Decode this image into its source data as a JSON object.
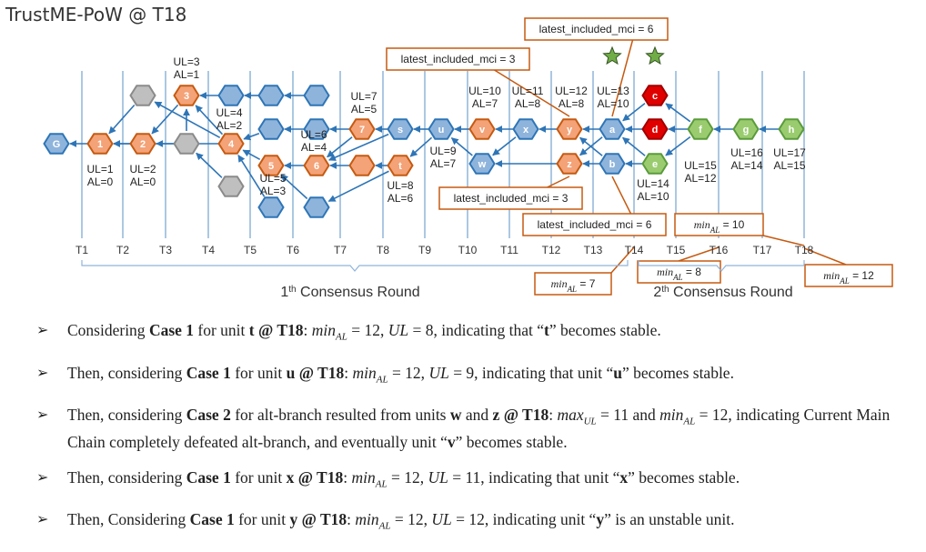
{
  "title": "TrustME-PoW @ T18",
  "colors": {
    "blue": "#8fb4dc",
    "orange": "#f4a277",
    "gray": "#bfbfbf",
    "red": "#e00000",
    "green": "#9acc6f",
    "stroke": "#2e75b6",
    "brown": "#c55a11"
  },
  "timeline": {
    "labels": [
      "T1",
      "T2",
      "T3",
      "T4",
      "T5",
      "T6",
      "T7",
      "T8",
      "T9",
      "T10",
      "T11",
      "T12",
      "T13",
      "T14",
      "T15",
      "T16",
      "T17",
      "T18"
    ]
  },
  "rounds": [
    {
      "label": "1th Consensus Round",
      "base": "1",
      "sup": "th",
      "rest": " Consensus Round"
    },
    {
      "label": "2th Consensus Round",
      "base": "2",
      "sup": "th",
      "rest": " Consensus Round"
    }
  ],
  "nodes": [
    {
      "id": "G",
      "label": "G",
      "color": "blue"
    },
    {
      "id": "1",
      "label": "1",
      "color": "orange"
    },
    {
      "id": "2",
      "label": "2",
      "color": "orange"
    },
    {
      "id": "g1",
      "label": "",
      "color": "gray"
    },
    {
      "id": "3",
      "label": "3",
      "color": "orange"
    },
    {
      "id": "g2",
      "label": "",
      "color": "gray"
    },
    {
      "id": "4",
      "label": "4",
      "color": "orange"
    },
    {
      "id": "b1",
      "label": "",
      "color": "blue"
    },
    {
      "id": "g3",
      "label": "",
      "color": "gray"
    },
    {
      "id": "b2",
      "label": "",
      "color": "blue"
    },
    {
      "id": "b3",
      "label": "",
      "color": "blue"
    },
    {
      "id": "b4",
      "label": "",
      "color": "blue"
    },
    {
      "id": "5",
      "label": "5",
      "color": "orange"
    },
    {
      "id": "b5",
      "label": "",
      "color": "blue"
    },
    {
      "id": "b6",
      "label": "",
      "color": "blue"
    },
    {
      "id": "6",
      "label": "6",
      "color": "orange"
    },
    {
      "id": "b7",
      "label": "",
      "color": "blue"
    },
    {
      "id": "7",
      "label": "7",
      "color": "orange"
    },
    {
      "id": "o1",
      "label": "",
      "color": "orange"
    },
    {
      "id": "s",
      "label": "s",
      "color": "blue"
    },
    {
      "id": "t",
      "label": "t",
      "color": "orange"
    },
    {
      "id": "u",
      "label": "u",
      "color": "blue"
    },
    {
      "id": "v",
      "label": "v",
      "color": "orange"
    },
    {
      "id": "w",
      "label": "w",
      "color": "blue"
    },
    {
      "id": "x",
      "label": "x",
      "color": "blue"
    },
    {
      "id": "y",
      "label": "y",
      "color": "orange"
    },
    {
      "id": "z",
      "label": "z",
      "color": "orange"
    },
    {
      "id": "a",
      "label": "a",
      "color": "blue"
    },
    {
      "id": "b",
      "label": "b",
      "color": "blue"
    },
    {
      "id": "c",
      "label": "c",
      "color": "red"
    },
    {
      "id": "d",
      "label": "d",
      "color": "red"
    },
    {
      "id": "e",
      "label": "e",
      "color": "green"
    },
    {
      "id": "f",
      "label": "f",
      "color": "green"
    },
    {
      "id": "gg",
      "label": "g",
      "color": "green"
    },
    {
      "id": "h",
      "label": "h",
      "color": "green"
    }
  ],
  "annotations": [
    {
      "id": "n3",
      "lines": [
        "UL=3",
        "AL=1"
      ]
    },
    {
      "id": "n4",
      "lines": [
        "UL=4",
        "AL=2"
      ]
    },
    {
      "id": "n1",
      "lines": [
        "UL=1",
        "AL=0"
      ]
    },
    {
      "id": "n2",
      "lines": [
        "UL=2",
        "AL=0"
      ]
    },
    {
      "id": "n5",
      "lines": [
        "UL=5",
        "AL=3"
      ]
    },
    {
      "id": "n6",
      "lines": [
        "UL=6",
        "AL=4"
      ]
    },
    {
      "id": "n7",
      "lines": [
        "UL=7",
        "AL=5"
      ]
    },
    {
      "id": "n8",
      "lines": [
        "UL=8",
        "AL=6"
      ]
    },
    {
      "id": "n9",
      "lines": [
        "UL=9",
        "AL=7"
      ]
    },
    {
      "id": "n10",
      "lines": [
        "UL=10",
        "AL=7"
      ]
    },
    {
      "id": "n11",
      "lines": [
        "UL=11",
        "AL=8"
      ]
    },
    {
      "id": "n12",
      "lines": [
        "UL=12",
        "AL=8"
      ]
    },
    {
      "id": "n13",
      "lines": [
        "UL=13",
        "AL=10"
      ]
    },
    {
      "id": "n14",
      "lines": [
        "UL=14",
        "AL=10"
      ]
    },
    {
      "id": "n15",
      "lines": [
        "UL=15",
        "AL=12"
      ]
    },
    {
      "id": "n16",
      "lines": [
        "UL=16",
        "AL=14"
      ]
    },
    {
      "id": "n17",
      "lines": [
        "UL=17",
        "AL=15"
      ]
    }
  ],
  "callouts": [
    {
      "id": "lim3_top",
      "text": "latest_included_mci = 3"
    },
    {
      "id": "lim6_top",
      "text": "latest_included_mci = 6"
    },
    {
      "id": "lim3_bot",
      "text": "latest_included_mci = 3"
    },
    {
      "id": "lim6_bot",
      "text": "latest_included_mci = 6"
    },
    {
      "id": "min10",
      "text": "min",
      "sub": "AL",
      "rest": " = 10"
    },
    {
      "id": "min8",
      "text": "min",
      "sub": "AL",
      "rest": " = 8"
    },
    {
      "id": "min7",
      "text": "min",
      "sub": "AL",
      "rest": " = 7"
    },
    {
      "id": "min12",
      "text": "min",
      "sub": "AL",
      "rest": " = 12"
    }
  ],
  "bullets": [
    [
      {
        "t": "Considering "
      },
      {
        "b": "Case 1"
      },
      {
        "t": " for unit "
      },
      {
        "b": "t @ T18"
      },
      {
        "t": ": "
      },
      {
        "i": "min"
      },
      {
        "s": "AL"
      },
      {
        "t": " = 12, "
      },
      {
        "i": "UL"
      },
      {
        "t": " = 8, indicating that “"
      },
      {
        "b": "t"
      },
      {
        "t": "” becomes stable."
      }
    ],
    [
      {
        "t": "Then, considering "
      },
      {
        "b": "Case 1"
      },
      {
        "t": " for unit "
      },
      {
        "b": "u @ T18"
      },
      {
        "t": ": "
      },
      {
        "i": "min"
      },
      {
        "s": "AL"
      },
      {
        "t": " = 12, "
      },
      {
        "i": "UL"
      },
      {
        "t": " = 9,  indicating that unit “"
      },
      {
        "b": "u"
      },
      {
        "t": "” becomes stable."
      }
    ],
    [
      {
        "t": "Then, considering "
      },
      {
        "b": "Case 2"
      },
      {
        "t": " for alt-branch resulted from units "
      },
      {
        "b": "w"
      },
      {
        "t": " and "
      },
      {
        "b": "z @ T18"
      },
      {
        "t": ": "
      },
      {
        "i": "max"
      },
      {
        "s": "UL"
      },
      {
        "t": " = 11 and "
      },
      {
        "i": "min"
      },
      {
        "s": "AL"
      },
      {
        "t": " = 12, indicating Current Main Chain completely defeated alt-branch, and eventually unit “"
      },
      {
        "b": "v"
      },
      {
        "t": "” becomes stable."
      }
    ],
    [
      {
        "t": "Then, considering "
      },
      {
        "b": "Case 1"
      },
      {
        "t": " for unit "
      },
      {
        "b": "x @ T18"
      },
      {
        "t": ": "
      },
      {
        "i": "min"
      },
      {
        "s": "AL"
      },
      {
        "t": " = 12, "
      },
      {
        "i": "UL"
      },
      {
        "t": " = 11,  indicating that unit “"
      },
      {
        "b": "x"
      },
      {
        "t": "” becomes stable."
      }
    ],
    [
      {
        "t": "Then, Considering "
      },
      {
        "b": "Case 1"
      },
      {
        "t": " for unit "
      },
      {
        "b": "y @ T18"
      },
      {
        "t": ": "
      },
      {
        "i": "min"
      },
      {
        "s": "AL"
      },
      {
        "t": " = 12, "
      },
      {
        "i": "UL"
      },
      {
        "t": " = 12, indicating unit “"
      },
      {
        "b": "y"
      },
      {
        "t": "” is an unstable unit."
      }
    ]
  ]
}
